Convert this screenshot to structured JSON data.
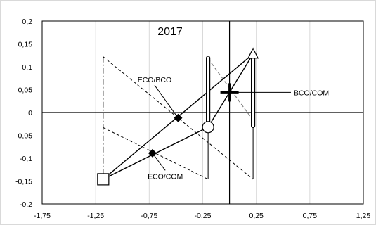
{
  "chart_data": {
    "type": "scatter",
    "title": "2017",
    "xlabel": "",
    "ylabel": "",
    "xlim": [
      -1.75,
      1.25
    ],
    "ylim": [
      -0.2,
      0.2
    ],
    "grid": "vertical-only",
    "x_ticks": [
      -1.75,
      -1.25,
      -0.75,
      -0.25,
      0.25,
      0.75,
      1.25
    ],
    "y_ticks": [
      -0.2,
      -0.15,
      -0.1,
      -0.05,
      0,
      0.05,
      0.1,
      0.15,
      0.2
    ],
    "x_tick_labels": [
      "-1,75",
      "-1,25",
      "-0,75",
      "-0,25",
      "0,25",
      "0,75",
      "1,25"
    ],
    "y_tick_labels": [
      "-0,2",
      "-0,15",
      "-0,1",
      "-0,05",
      "0",
      "0,05",
      "0,1",
      "0,15",
      "0,2"
    ],
    "points": [
      {
        "id": "square",
        "marker": "square",
        "x": -1.18,
        "y": -0.146
      },
      {
        "id": "circle",
        "marker": "circle",
        "x": -0.2,
        "y": -0.032
      },
      {
        "id": "triangle",
        "marker": "triangle",
        "x": 0.22,
        "y": 0.128
      },
      {
        "id": "eco-com",
        "marker": "diamond",
        "x": -0.72,
        "y": -0.089
      },
      {
        "id": "eco-bco",
        "marker": "diamond",
        "x": -0.48,
        "y": -0.012
      },
      {
        "id": "bco-com",
        "marker": "plus",
        "x": 0.0,
        "y": 0.044
      }
    ],
    "solid_segments": [
      [
        [
          -1.18,
          -0.146
        ],
        [
          0.22,
          0.128
        ]
      ],
      [
        [
          -1.18,
          -0.146
        ],
        [
          -0.2,
          -0.032
        ]
      ],
      [
        [
          -0.2,
          -0.032
        ],
        [
          0.22,
          0.128
        ]
      ]
    ],
    "dashed_segments": [
      [
        [
          -1.18,
          0.122
        ],
        [
          0.22,
          -0.146
        ]
      ],
      [
        [
          -1.18,
          -0.033
        ],
        [
          -0.2,
          -0.146
        ]
      ]
    ],
    "dashdot_segments": [
      [
        [
          -1.18,
          0.122
        ],
        [
          -1.18,
          -0.146
        ]
      ]
    ],
    "gray_dashed_segments": [
      [
        [
          -0.2,
          0.118
        ],
        [
          0.22,
          -0.017
        ]
      ]
    ],
    "thin_solid_segments": [
      [
        [
          -0.2,
          -0.032
        ],
        [
          -0.2,
          -0.146
        ]
      ],
      [
        [
          0.22,
          0.128
        ],
        [
          0.22,
          -0.146
        ]
      ]
    ],
    "error_bars": [
      {
        "x": -0.2,
        "y_low": -0.03,
        "y_high": 0.123
      },
      {
        "x": 0.22,
        "y_low": -0.033,
        "y_high": 0.128
      }
    ],
    "reference_lines": {
      "x": 0.0,
      "y": 0
    },
    "annotations": [
      {
        "text": "ECO/BCO",
        "point": "eco-bco",
        "label_x": -0.7,
        "label_y": 0.072,
        "anchor": "middle"
      },
      {
        "text": "BCO/COM",
        "point": "bco-com",
        "label_x": 0.6,
        "label_y": 0.044,
        "anchor": "start"
      },
      {
        "text": "ECO/COM",
        "point": "eco-com",
        "label_x": -0.6,
        "label_y": -0.139,
        "anchor": "middle"
      }
    ]
  }
}
